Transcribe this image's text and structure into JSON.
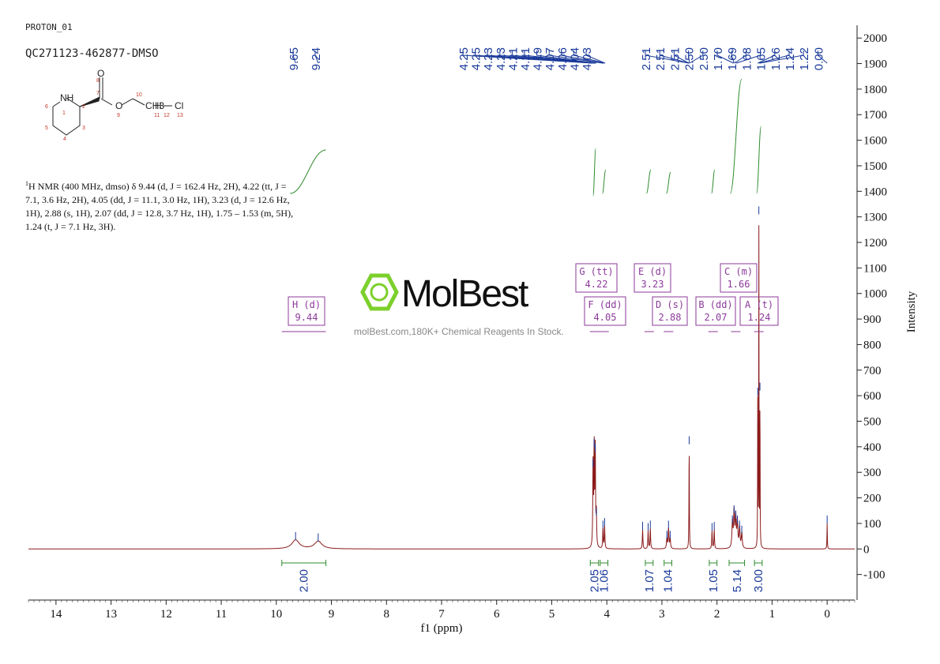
{
  "header": {
    "experiment": "PROTON_01",
    "sample": "QC271123-462877-DMSO"
  },
  "description": {
    "prefix": "1",
    "text": "H NMR (400 MHz, dmso) δ 9.44 (d, J = 162.4 Hz, 2H), 4.22 (tt, J = 7.1, 3.6 Hz, 2H), 4.05 (dd, J = 11.1, 3.0 Hz, 1H), 3.23 (d, J = 12.6 Hz, 1H), 2.88 (s, 1H), 2.07 (dd, J = 12.8, 3.7 Hz, 1H), 1.75 – 1.53 (m, 5H), 1.24 (t, J = 7.1 Hz, 3H)."
  },
  "watermark": {
    "logo": "MolBest",
    "tagline": "molBest.com,180K+ Chemical Reagents In Stock."
  },
  "structure": {
    "atoms": [
      "NH",
      "1",
      "6",
      "5",
      "4",
      "3",
      "2",
      "7",
      "8",
      "O",
      "O",
      "9",
      "10",
      "CH3",
      "11",
      "H",
      "12",
      "Cl",
      "13"
    ]
  },
  "chart_data": {
    "type": "line",
    "xlabel": "f1 (ppm)",
    "ylabel": "Intensity",
    "xlim": [
      14.5,
      -0.5
    ],
    "ylim": [
      -200,
      2050
    ],
    "x_ticks": [
      14,
      13,
      12,
      11,
      10,
      9,
      8,
      7,
      6,
      5,
      4,
      3,
      2,
      1,
      0
    ],
    "y_ticks": [
      -100,
      0,
      100,
      200,
      300,
      400,
      500,
      600,
      700,
      800,
      900,
      1000,
      1100,
      1200,
      1300,
      1400,
      1500,
      1600,
      1700,
      1800,
      1900,
      2000
    ],
    "peak_labels_left": [
      "9.65",
      "9.24"
    ],
    "peak_labels_mid": [
      "4.25",
      "4.25",
      "4.23",
      "4.23",
      "4.21",
      "4.21",
      "4.19",
      "4.07",
      "4.06",
      "4.04",
      "4.03"
    ],
    "peak_labels_right": [
      "2.51",
      "2.51",
      "2.51",
      "2.50",
      "2.50",
      "1.70",
      "1.69",
      "1.68",
      "1.65",
      "1.26",
      "1.24",
      "1.22",
      "0.00"
    ],
    "multiplets": [
      {
        "letter": "H",
        "type": "d",
        "shift": "9.44"
      },
      {
        "letter": "G",
        "type": "tt",
        "shift": "4.22"
      },
      {
        "letter": "F",
        "type": "dd",
        "shift": "4.05"
      },
      {
        "letter": "E",
        "type": "d",
        "shift": "3.23"
      },
      {
        "letter": "D",
        "type": "s",
        "shift": "2.88"
      },
      {
        "letter": "C",
        "type": "m",
        "shift": "1.66"
      },
      {
        "letter": "B",
        "type": "dd",
        "shift": "2.07"
      },
      {
        "letter": "A",
        "type": "t",
        "shift": "1.24"
      }
    ],
    "integrals": [
      {
        "from": 9.9,
        "to": 9.1,
        "value": "2.00"
      },
      {
        "from": 4.3,
        "to": 4.15,
        "value": "2.05"
      },
      {
        "from": 4.12,
        "to": 3.98,
        "value": "1.06"
      },
      {
        "from": 3.3,
        "to": 3.16,
        "value": "1.07"
      },
      {
        "from": 2.96,
        "to": 2.82,
        "value": "1.04"
      },
      {
        "from": 2.14,
        "to": 2.0,
        "value": "1.05"
      },
      {
        "from": 1.78,
        "to": 1.5,
        "value": "5.14"
      },
      {
        "from": 1.32,
        "to": 1.18,
        "value": "3.00"
      }
    ],
    "peaks": [
      {
        "x": 9.65,
        "y": 35,
        "w": 0.08
      },
      {
        "x": 9.24,
        "y": 30,
        "w": 0.08
      },
      {
        "x": 4.25,
        "y": 320,
        "w": 0.006
      },
      {
        "x": 4.23,
        "y": 400,
        "w": 0.006
      },
      {
        "x": 4.21,
        "y": 380,
        "w": 0.006
      },
      {
        "x": 4.19,
        "y": 130,
        "w": 0.006
      },
      {
        "x": 4.07,
        "y": 80,
        "w": 0.006
      },
      {
        "x": 4.04,
        "y": 90,
        "w": 0.006
      },
      {
        "x": 3.35,
        "y": 75,
        "w": 0.006
      },
      {
        "x": 3.25,
        "y": 70,
        "w": 0.006
      },
      {
        "x": 3.21,
        "y": 80,
        "w": 0.006
      },
      {
        "x": 2.91,
        "y": 40,
        "w": 0.008
      },
      {
        "x": 2.88,
        "y": 80,
        "w": 0.008
      },
      {
        "x": 2.85,
        "y": 40,
        "w": 0.008
      },
      {
        "x": 2.505,
        "y": 410,
        "w": 0.004
      },
      {
        "x": 2.09,
        "y": 70,
        "w": 0.006
      },
      {
        "x": 2.05,
        "y": 75,
        "w": 0.006
      },
      {
        "x": 1.72,
        "y": 100,
        "w": 0.01
      },
      {
        "x": 1.69,
        "y": 140,
        "w": 0.01
      },
      {
        "x": 1.66,
        "y": 120,
        "w": 0.01
      },
      {
        "x": 1.63,
        "y": 100,
        "w": 0.01
      },
      {
        "x": 1.59,
        "y": 80,
        "w": 0.01
      },
      {
        "x": 1.55,
        "y": 60,
        "w": 0.01
      },
      {
        "x": 1.26,
        "y": 600,
        "w": 0.003
      },
      {
        "x": 1.24,
        "y": 1310,
        "w": 0.003
      },
      {
        "x": 1.22,
        "y": 620,
        "w": 0.003
      },
      {
        "x": 0.0,
        "y": 100,
        "w": 0.004
      }
    ]
  },
  "colors": {
    "spectrum": "#8b1a1a",
    "peak_labels": "#1a3a9a",
    "integral": "#2e8b2e",
    "multiplet": "#8b3a9a",
    "axis": "#222222",
    "logo_green": "#7cd02c"
  }
}
